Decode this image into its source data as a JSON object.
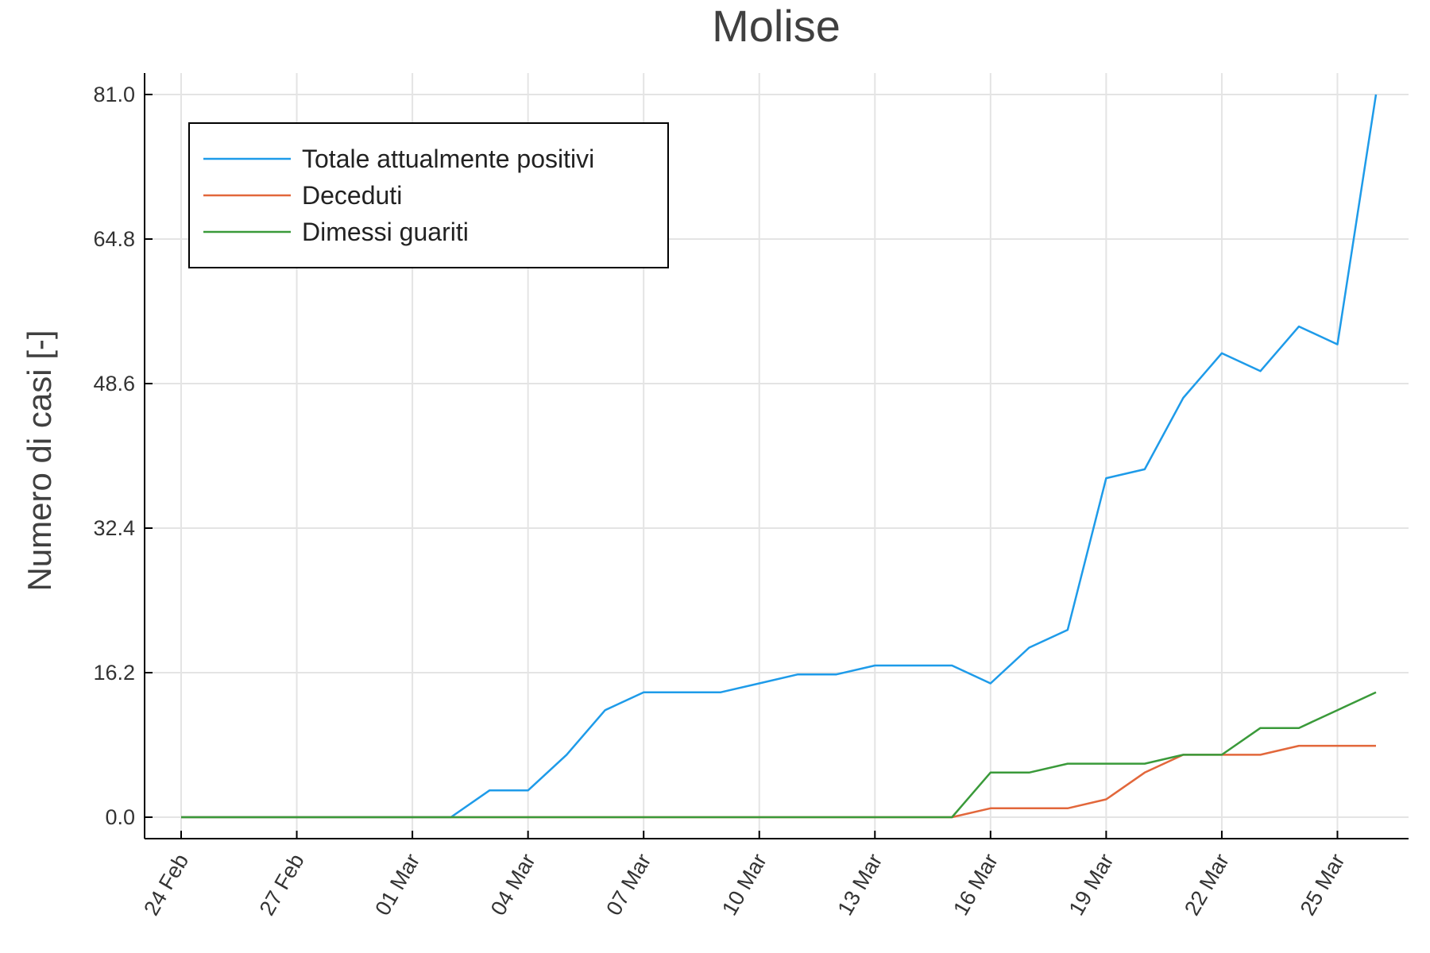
{
  "chart_data": {
    "type": "line",
    "title": "Molise",
    "xlabel": "",
    "ylabel": "Numero di casi [-]",
    "ylim": [
      0,
      81
    ],
    "y_ticks": [
      "0.0",
      "16.2",
      "32.4",
      "48.6",
      "64.8",
      "81.0"
    ],
    "x_ticks": [
      "24 Feb",
      "27 Feb",
      "01 Mar",
      "04 Mar",
      "07 Mar",
      "10 Mar",
      "13 Mar",
      "16 Mar",
      "19 Mar",
      "22 Mar",
      "25 Mar"
    ],
    "x": [
      "24 Feb",
      "25 Feb",
      "26 Feb",
      "27 Feb",
      "28 Feb",
      "29 Feb",
      "01 Mar",
      "02 Mar",
      "03 Mar",
      "04 Mar",
      "05 Mar",
      "06 Mar",
      "07 Mar",
      "08 Mar",
      "09 Mar",
      "10 Mar",
      "11 Mar",
      "12 Mar",
      "13 Mar",
      "14 Mar",
      "15 Mar",
      "16 Mar",
      "17 Mar",
      "18 Mar",
      "19 Mar",
      "20 Mar",
      "21 Mar",
      "22 Mar",
      "23 Mar",
      "24 Mar",
      "25 Mar",
      "26 Mar"
    ],
    "grid": true,
    "legend_position": "top-left",
    "series": [
      {
        "name": "Totale attualmente positivi",
        "color": "#1e9be9",
        "values": [
          0,
          0,
          0,
          0,
          0,
          0,
          0,
          0,
          3,
          3,
          7,
          12,
          14,
          14,
          14,
          15,
          16,
          16,
          17,
          17,
          17,
          15,
          19,
          21,
          38,
          39,
          47,
          52,
          50,
          55,
          53,
          81
        ]
      },
      {
        "name": "Deceduti",
        "color": "#e2673b",
        "values": [
          0,
          0,
          0,
          0,
          0,
          0,
          0,
          0,
          0,
          0,
          0,
          0,
          0,
          0,
          0,
          0,
          0,
          0,
          0,
          0,
          0,
          1,
          1,
          1,
          2,
          5,
          7,
          7,
          7,
          8,
          8,
          8
        ]
      },
      {
        "name": "Dimessi guariti",
        "color": "#3a9a3a",
        "values": [
          0,
          0,
          0,
          0,
          0,
          0,
          0,
          0,
          0,
          0,
          0,
          0,
          0,
          0,
          0,
          0,
          0,
          0,
          0,
          0,
          0,
          5,
          5,
          6,
          6,
          6,
          7,
          7,
          10,
          10,
          12,
          14
        ]
      }
    ]
  }
}
